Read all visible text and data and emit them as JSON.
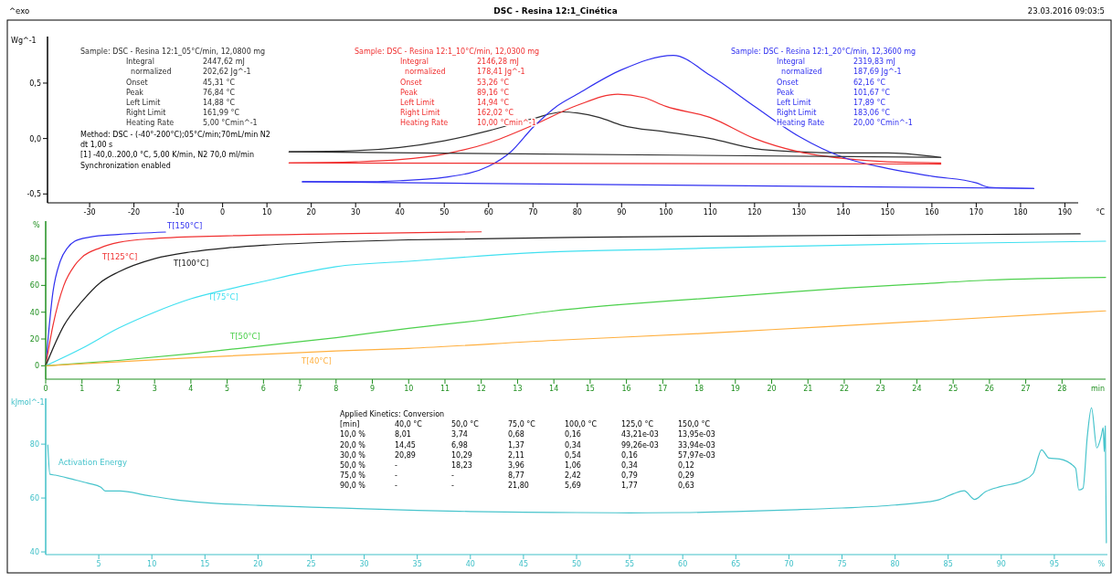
{
  "chart_data": [
    {
      "type": "line",
      "title": "DSC - Resina 12:1_Cinética",
      "xlabel": "°C",
      "ylabel": "Wg^-1",
      "xlim": [
        -39.5,
        193
      ],
      "ylim": [
        -0.58,
        0.92
      ],
      "xticks": [
        -30,
        -20,
        -10,
        0,
        10,
        20,
        30,
        40,
        50,
        60,
        70,
        80,
        90,
        100,
        110,
        120,
        130,
        140,
        150,
        160,
        170,
        180,
        190
      ],
      "yticks": [
        {
          "value": -0.5,
          "label": "-0,5"
        },
        {
          "value": 0,
          "label": "0,0"
        },
        {
          "value": 0.5,
          "label": "0,5"
        }
      ],
      "series": [
        {
          "name": "Sample: DSC - Resina 12:1_05°C/min, 12,0800 mg",
          "color": "#303030",
          "x": [
            15,
            30,
            40,
            50,
            60,
            70,
            76.84,
            80,
            85,
            90,
            100,
            110,
            120,
            130,
            140,
            150,
            162
          ],
          "values": [
            -0.12,
            -0.11,
            -0.08,
            -0.02,
            0.07,
            0.18,
            0.24,
            0.23,
            0.19,
            0.12,
            0.06,
            0,
            -0.09,
            -0.12,
            -0.13,
            -0.13,
            -0.17
          ]
        },
        {
          "name": "Sample: DSC - Resina 12:1_10°C/min, 12,0300 mg",
          "color": "#f03030",
          "x": [
            15,
            30,
            40,
            50,
            60,
            70,
            80,
            89.16,
            95,
            100,
            110,
            120,
            130,
            140,
            150,
            162
          ],
          "values": [
            -0.22,
            -0.21,
            -0.19,
            -0.14,
            -0.04,
            0.12,
            0.3,
            0.4,
            0.37,
            0.29,
            0.19,
            0,
            -0.12,
            -0.18,
            -0.21,
            -0.22
          ]
        },
        {
          "name": "Sample: DSC - Resina 12:1_20°C/min, 12,3600 mg",
          "color": "#3030f0",
          "x": [
            18,
            30,
            40,
            50,
            60,
            65,
            70,
            75,
            80,
            90,
            101.67,
            110,
            120,
            130,
            140,
            150,
            160,
            170,
            173,
            183
          ],
          "values": [
            -0.39,
            -0.39,
            -0.38,
            -0.35,
            -0.25,
            -0.12,
            0.1,
            0.28,
            0.4,
            0.62,
            0.75,
            0.57,
            0.29,
            0.02,
            -0.17,
            -0.27,
            -0.34,
            -0.4,
            -0.44,
            -0.45
          ]
        },
        {
          "color": "#303030",
          "x": [
            15,
            162
          ],
          "values": [
            -0.12,
            -0.17
          ]
        },
        {
          "color": "#f03030",
          "x": [
            15,
            162
          ],
          "values": [
            -0.22,
            -0.23
          ]
        },
        {
          "color": "#3030f0",
          "x": [
            18,
            183
          ],
          "values": [
            -0.39,
            -0.45
          ]
        }
      ],
      "annotations": [
        "^exo",
        "23.03.2016 09:03:5",
        "Integral\t2447,62 mJ\n  normalized\t202,62 Jg^-1\nOnset\t45,31 °C\nPeak\t76,84 °C\nLeft Limit\t14,88 °C\nRight Limit\t161,99 °C\nHeating Rate\t5,00 °Cmin^-1",
        "Integral\t2146,28 mJ\n  normalized\t178,41 Jg^-1\nOnset\t53,26 °C\nPeak\t89,16 °C\nLeft Limit\t14,94 °C\nRight Limit\t162,02 °C\nHeating Rate\t10,00 °Cmin^-1",
        "Integral\t2319,83 mJ\n  normalized\t187,69 Jg^-1\nOnset\t62,16 °C\nPeak\t101,67 °C\nLeft Limit\t17,89 °C\nRight Limit\t183,06 °C\nHeating Rate\t20,00 °Cmin^-1",
        "Method: DSC - (-40°-200°C);05°C/min;70mL/min N2\ndt 1,00 s\n[1] -40,0..200,0 °C, 5,00 K/min, N2 70,0 ml/min\nSynchronization enabled"
      ]
    },
    {
      "type": "line",
      "xlabel": "min",
      "ylabel": "%",
      "xlim": [
        0,
        29.2
      ],
      "ylim": [
        -10,
        108
      ],
      "xticks": [
        0,
        1,
        2,
        3,
        4,
        5,
        6,
        7,
        8,
        9,
        10,
        11,
        12,
        13,
        14,
        15,
        16,
        17,
        18,
        19,
        20,
        21,
        22,
        23,
        24,
        25,
        26,
        27,
        28
      ],
      "yticks": [
        0,
        20,
        40,
        60,
        80
      ],
      "series": [
        {
          "name": "T[150°C]",
          "color": "#3030f0",
          "x": [
            0,
            0.2,
            0.4,
            0.6,
            0.8,
            1.2,
            2,
            3.3
          ],
          "values": [
            0,
            55,
            78,
            88,
            93,
            96,
            98,
            99.8
          ]
        },
        {
          "name": "T[125°C]",
          "color": "#f03030",
          "x": [
            0,
            0.2,
            0.5,
            0.8,
            1,
            1.5,
            2,
            3,
            5,
            8,
            12
          ],
          "values": [
            0,
            30,
            60,
            75,
            81,
            88,
            92,
            95,
            97,
            98.5,
            100
          ]
        },
        {
          "name": "T[100°C]",
          "color": "#202020",
          "x": [
            0,
            0.5,
            1,
            1.5,
            2,
            3,
            4,
            5,
            6,
            8,
            10,
            15,
            20,
            28.5
          ],
          "values": [
            0,
            30,
            48,
            62,
            70,
            80,
            85,
            88,
            90,
            92.5,
            94,
            96,
            97,
            98.5
          ]
        },
        {
          "name": "T[75°C]",
          "color": "#40e0f0",
          "x": [
            0,
            1,
            2,
            3,
            4,
            5,
            6,
            7,
            8,
            10,
            12,
            14,
            17,
            20,
            24,
            29.2
          ],
          "values": [
            0,
            13,
            28,
            40,
            50,
            57,
            63,
            69,
            74,
            78,
            82,
            85,
            87,
            89,
            91,
            93
          ]
        },
        {
          "name": "T[50°C]",
          "color": "#4cd04c",
          "x": [
            0,
            2,
            4,
            6,
            8,
            10,
            12,
            14,
            16,
            18,
            20,
            22,
            24,
            26,
            29.2
          ],
          "values": [
            0,
            4,
            9,
            15,
            21,
            28,
            34,
            41,
            46,
            50,
            54,
            58,
            61,
            64,
            66
          ]
        },
        {
          "name": "T[40°C]",
          "color": "#ffb040",
          "x": [
            0,
            4,
            8,
            10,
            14,
            18,
            20,
            24,
            29.2
          ],
          "values": [
            0,
            6,
            11,
            13,
            19,
            24,
            27,
            33,
            41
          ]
        }
      ]
    },
    {
      "type": "line",
      "xlabel": "%",
      "ylabel": "kJmol^-1",
      "xlim": [
        0,
        100
      ],
      "ylim": [
        39,
        97
      ],
      "xticks": [
        5,
        10,
        15,
        20,
        25,
        30,
        35,
        40,
        45,
        50,
        55,
        60,
        65,
        70,
        75,
        80,
        85,
        90,
        95
      ],
      "yticks": [
        40,
        60,
        80
      ],
      "series": [
        {
          "name": "Activation Energy",
          "color": "#48c4cc",
          "x": [
            0.2,
            0.4,
            0.9,
            2.5,
            4,
            5.2,
            5.6,
            7,
            9.5,
            12,
            15,
            20,
            25,
            30,
            35,
            40,
            45,
            50,
            55,
            60,
            65,
            70,
            75,
            80,
            84,
            85.5,
            86.5,
            87.5,
            88.5,
            90,
            92,
            93,
            93.8,
            94.5,
            95.5,
            97,
            97.3,
            97.7,
            98.1,
            98.5,
            99,
            99.4,
            99.6,
            99.7,
            99.8,
            99.9
          ],
          "values": [
            79.7,
            68.8,
            68.5,
            67,
            65.5,
            64,
            62.6,
            62.6,
            61,
            59.5,
            58.3,
            57.3,
            56.6,
            56,
            55.4,
            55,
            54.7,
            54.6,
            54.5,
            54.6,
            55,
            55.6,
            56.3,
            57.4,
            59.2,
            61.6,
            62.7,
            59.5,
            62.3,
            64.3,
            66.4,
            69.1,
            77.9,
            74.8,
            74.5,
            71.1,
            63,
            63.6,
            82.7,
            93.5,
            78.6,
            82.7,
            86.1,
            77.2,
            86.8,
            43.4
          ]
        }
      ],
      "annotations": [
        "Applied Kinetics: Conversion\n[min]\t40,0 °C\t50,0 °C\t75,0 °C\t100,0 °C\t125,0 °C\t150,0 °C\n10,0 %\t8,01\t3,74\t0,68\t0,16\t43,21e-03\t13,95e-03\n20,0 %\t14,45\t6,98\t1,37\t0,34\t99,26e-03\t33,94e-03\n30,0 %\t20,89\t10,29\t2,11\t0,54\t0,16\t57,97e-03\n50,0 %\t-\t18,23\t3,96\t1,06\t0,34\t0,12\n75,0 %\t-\t-\t8,77\t2,42\t0,79\t0,29\n90,0 %\t-\t-\t21,80\t5,69\t1,77\t0,63"
      ]
    }
  ]
}
